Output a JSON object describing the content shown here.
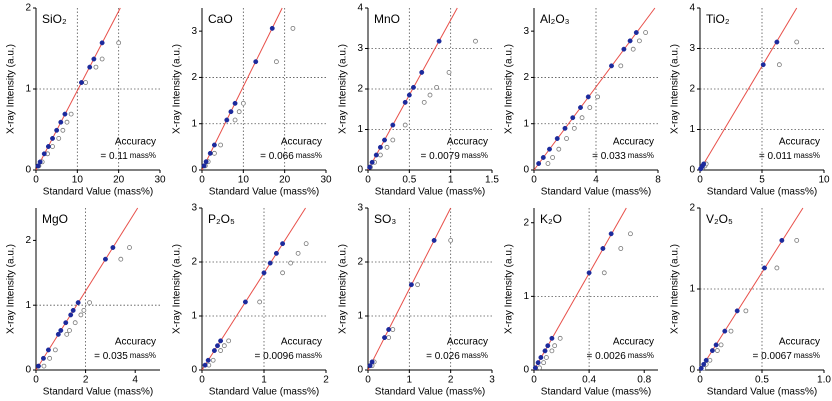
{
  "chart_data": [
    {
      "type": "scatter",
      "title": "SiO₂",
      "xlabel": "Standard Value (mass%)",
      "ylabel": "X-ray Intensity (a.u.)",
      "xlim": [
        0,
        30
      ],
      "xticks": [
        0,
        10,
        20,
        30
      ],
      "ylim": [
        0,
        2
      ],
      "yticks": [
        0,
        1,
        2
      ],
      "grid": true,
      "annotation": "Accuracy",
      "accuracy": "= 0.11",
      "unit": "mass%",
      "series": [
        {
          "mode": "line",
          "color": "#e8504a",
          "x": [
            0,
            20.4
          ],
          "values": [
            0,
            2
          ]
        },
        {
          "mode": "open",
          "color": "#777777",
          "x": [
            0.7,
            1.5,
            2.8,
            4,
            5.5,
            6.5,
            7.5,
            8.5,
            12,
            14.5,
            16,
            20
          ],
          "values": [
            0.05,
            0.1,
            0.2,
            0.29,
            0.39,
            0.49,
            0.59,
            0.69,
            1.08,
            1.27,
            1.37,
            1.57
          ]
        },
        {
          "mode": "filled",
          "color": "#1c2a9c",
          "x": [
            0.5,
            1,
            2,
            3,
            4,
            5,
            6,
            7,
            11,
            13,
            14,
            16
          ],
          "values": [
            0.05,
            0.1,
            0.2,
            0.29,
            0.39,
            0.49,
            0.59,
            0.69,
            1.08,
            1.27,
            1.37,
            1.57
          ]
        }
      ]
    },
    {
      "type": "scatter",
      "title": "CaO",
      "xlabel": "Standard Value (mass%)",
      "ylabel": "X-ray Intensity (a.u.)",
      "xlim": [
        0,
        30
      ],
      "xticks": [
        0,
        10,
        20,
        30
      ],
      "ylim": [
        0,
        3.5
      ],
      "yticks": [
        0,
        1,
        2,
        3
      ],
      "grid": true,
      "annotation": "Accuracy",
      "accuracy": "= 0.066",
      "unit": "mass%",
      "series": [
        {
          "mode": "line",
          "color": "#e8504a",
          "x": [
            0,
            19.4
          ],
          "values": [
            0,
            3.5
          ]
        },
        {
          "mode": "open",
          "color": "#777777",
          "x": [
            0.8,
            1.5,
            3,
            4.5,
            8,
            9,
            10,
            18,
            22
          ],
          "values": [
            0.09,
            0.18,
            0.36,
            0.54,
            1.08,
            1.26,
            1.44,
            2.34,
            3.06
          ]
        },
        {
          "mode": "filled",
          "color": "#1c2a9c",
          "x": [
            0.5,
            1,
            2,
            3,
            6,
            7,
            8,
            13,
            17
          ],
          "values": [
            0.09,
            0.18,
            0.36,
            0.54,
            1.08,
            1.26,
            1.44,
            2.34,
            3.06
          ]
        }
      ]
    },
    {
      "type": "scatter",
      "title": "MnO",
      "xlabel": "Standard Value (mass%)",
      "ylabel": "X-ray Intensity (a.u.)",
      "xlim": [
        0,
        1.5
      ],
      "xticks": [
        0,
        0.5,
        1,
        1.5
      ],
      "ylim": [
        0,
        4
      ],
      "yticks": [
        0,
        1,
        2,
        3,
        4
      ],
      "grid": true,
      "annotation": "Accuracy",
      "accuracy": "= 0.0079",
      "unit": "mass%",
      "series": [
        {
          "mode": "line",
          "color": "#e8504a",
          "x": [
            0,
            1.08
          ],
          "values": [
            0,
            4
          ]
        },
        {
          "mode": "open",
          "color": "#777777",
          "x": [
            0.03,
            0.08,
            0.15,
            0.23,
            0.3,
            0.45,
            0.68,
            0.75,
            0.83,
            0.98,
            1.3
          ],
          "values": [
            0.07,
            0.19,
            0.37,
            0.56,
            0.74,
            1.11,
            1.67,
            1.85,
            2.04,
            2.41,
            3.18
          ]
        },
        {
          "mode": "filled",
          "color": "#1c2a9c",
          "x": [
            0.02,
            0.05,
            0.1,
            0.15,
            0.2,
            0.3,
            0.45,
            0.5,
            0.55,
            0.65,
            0.86
          ],
          "values": [
            0.07,
            0.19,
            0.37,
            0.56,
            0.74,
            1.11,
            1.67,
            1.85,
            2.04,
            2.41,
            3.18
          ]
        }
      ]
    },
    {
      "type": "scatter",
      "title": "Al₂O₃",
      "xlabel": "Standard Value (mass%)",
      "ylabel": "X-ray Intensity (a.u.)",
      "xlim": [
        0,
        8
      ],
      "xticks": [
        0,
        4,
        8
      ],
      "ylim": [
        0,
        3.5
      ],
      "yticks": [
        0,
        1,
        2,
        3
      ],
      "grid": true,
      "annotation": "Accuracy",
      "accuracy": "= 0.033",
      "unit": "mass%",
      "series": [
        {
          "mode": "line",
          "color": "#e8504a",
          "x": [
            0,
            7.8
          ],
          "values": [
            0,
            3.5
          ]
        },
        {
          "mode": "open",
          "color": "#777777",
          "x": [
            0.9,
            1.2,
            1.6,
            2.1,
            2.6,
            3.1,
            3.6,
            4.1,
            5.6,
            6.4,
            6.8,
            7.2
          ],
          "values": [
            0.14,
            0.27,
            0.45,
            0.68,
            0.9,
            1.13,
            1.35,
            1.58,
            2.25,
            2.61,
            2.79,
            2.97
          ]
        },
        {
          "mode": "filled",
          "color": "#1c2a9c",
          "x": [
            0.3,
            0.6,
            1,
            1.5,
            2,
            2.5,
            3,
            3.5,
            5,
            5.8,
            6.2,
            6.6
          ],
          "values": [
            0.14,
            0.27,
            0.45,
            0.68,
            0.9,
            1.13,
            1.35,
            1.58,
            2.25,
            2.61,
            2.79,
            2.97
          ]
        }
      ]
    },
    {
      "type": "scatter",
      "title": "TiO₂",
      "xlabel": "Standard Value (mass%)",
      "ylabel": "X-ray Intensity (a.u.)",
      "xlim": [
        0,
        10
      ],
      "xticks": [
        0,
        5,
        10
      ],
      "ylim": [
        0,
        4
      ],
      "yticks": [
        0,
        1,
        2,
        3,
        4
      ],
      "grid": true,
      "annotation": "Accuracy",
      "accuracy": "= 0.011",
      "unit": "mass%",
      "series": [
        {
          "mode": "line",
          "color": "#e8504a",
          "x": [
            0,
            7.8
          ],
          "values": [
            0,
            4
          ]
        },
        {
          "mode": "open",
          "color": "#777777",
          "x": [
            0.1,
            0.2,
            0.4,
            0.5,
            6.4,
            7.8
          ],
          "values": [
            0.03,
            0.05,
            0.1,
            0.15,
            2.6,
            3.16
          ]
        },
        {
          "mode": "filled",
          "color": "#1c2a9c",
          "x": [
            0.05,
            0.1,
            0.2,
            0.3,
            5.1,
            6.2
          ],
          "values": [
            0.03,
            0.05,
            0.1,
            0.15,
            2.6,
            3.16
          ]
        }
      ]
    },
    {
      "type": "scatter",
      "title": "MgO",
      "xlabel": "Standard Value (mass%)",
      "ylabel": "X-ray Intensity (a.u.)",
      "xlim": [
        0,
        5
      ],
      "xticks": [
        0,
        2,
        4
      ],
      "ylim": [
        0,
        2.5
      ],
      "yticks": [
        0,
        1,
        2
      ],
      "grid": true,
      "annotation": "Accuracy",
      "accuracy": "= 0.035",
      "unit": "mass%",
      "series": [
        {
          "mode": "line",
          "color": "#e8504a",
          "x": [
            0,
            4.1
          ],
          "values": [
            0,
            2.5
          ]
        },
        {
          "mode": "open",
          "color": "#777777",
          "x": [
            0.32,
            0.55,
            0.78,
            1.24,
            1.35,
            1.58,
            1.81,
            1.93,
            2.16,
            3.42,
            3.77
          ],
          "values": [
            0.06,
            0.18,
            0.31,
            0.55,
            0.61,
            0.73,
            0.85,
            0.92,
            1.04,
            1.71,
            1.89
          ]
        },
        {
          "mode": "filled",
          "color": "#1c2a9c",
          "x": [
            0.1,
            0.3,
            0.5,
            0.9,
            1.0,
            1.2,
            1.4,
            1.5,
            1.7,
            2.8,
            3.1
          ],
          "values": [
            0.06,
            0.18,
            0.31,
            0.55,
            0.61,
            0.73,
            0.85,
            0.92,
            1.04,
            1.71,
            1.89
          ]
        }
      ]
    },
    {
      "type": "scatter",
      "title": "P₂O₅",
      "xlabel": "Standard Value (mass%)",
      "ylabel": "X-ray Intensity (a.u.)",
      "xlim": [
        0,
        2
      ],
      "xticks": [
        0,
        1,
        2
      ],
      "ylim": [
        0,
        3
      ],
      "yticks": [
        0,
        1,
        2,
        3
      ],
      "grid": true,
      "annotation": "Accuracy",
      "accuracy": "= 0.0096",
      "unit": "mass%",
      "series": [
        {
          "mode": "line",
          "color": "#e8504a",
          "x": [
            0,
            1.67
          ],
          "values": [
            0,
            3
          ]
        },
        {
          "mode": "open",
          "color": "#777777",
          "x": [
            0.11,
            0.18,
            0.3,
            0.36,
            0.43,
            0.93,
            1.3,
            1.43,
            1.55,
            1.68
          ],
          "values": [
            0.09,
            0.18,
            0.36,
            0.45,
            0.54,
            1.26,
            1.8,
            1.98,
            2.16,
            2.34
          ]
        },
        {
          "mode": "filled",
          "color": "#1c2a9c",
          "x": [
            0.05,
            0.1,
            0.2,
            0.25,
            0.3,
            0.7,
            1.0,
            1.1,
            1.2,
            1.3
          ],
          "values": [
            0.09,
            0.18,
            0.36,
            0.45,
            0.54,
            1.26,
            1.8,
            1.98,
            2.16,
            2.34
          ]
        }
      ]
    },
    {
      "type": "scatter",
      "title": "SO₃",
      "xlabel": "Standard Value (mass%)",
      "ylabel": "X-ray Intensity (a.u.)",
      "xlim": [
        0,
        3
      ],
      "xticks": [
        0,
        1,
        2,
        3
      ],
      "ylim": [
        0,
        3
      ],
      "yticks": [
        0,
        1,
        2,
        3
      ],
      "grid": true,
      "annotation": "Accuracy",
      "accuracy": "= 0.026",
      "unit": "mass%",
      "series": [
        {
          "mode": "line",
          "color": "#e8504a",
          "x": [
            0,
            2
          ],
          "values": [
            0,
            3
          ]
        },
        {
          "mode": "open",
          "color": "#777777",
          "x": [
            0.1,
            0.15,
            0.5,
            0.6,
            1.2,
            2.0
          ],
          "values": [
            0.08,
            0.15,
            0.6,
            0.75,
            1.58,
            2.4
          ]
        },
        {
          "mode": "filled",
          "color": "#1c2a9c",
          "x": [
            0.05,
            0.1,
            0.4,
            0.5,
            1.05,
            1.6
          ],
          "values": [
            0.08,
            0.15,
            0.6,
            0.75,
            1.58,
            2.4
          ]
        }
      ]
    },
    {
      "type": "scatter",
      "title": "K₂O",
      "xlabel": "Standard Value (mass%)",
      "ylabel": "X-ray Intensity (a.u.)",
      "xlim": [
        0,
        0.9
      ],
      "xticks": [
        0,
        0.4,
        0.8
      ],
      "ylim": [
        0,
        2.2
      ],
      "yticks": [
        0,
        1,
        2
      ],
      "grid": true,
      "annotation": "Accuracy",
      "accuracy": "= 0.0026",
      "unit": "mass%",
      "series": [
        {
          "mode": "line",
          "color": "#e8504a",
          "x": [
            0,
            0.67
          ],
          "values": [
            0,
            2.2
          ]
        },
        {
          "mode": "open",
          "color": "#777777",
          "x": [
            0.04,
            0.07,
            0.09,
            0.13,
            0.15,
            0.19,
            0.51,
            0.63,
            0.7
          ],
          "values": [
            0.03,
            0.1,
            0.17,
            0.26,
            0.33,
            0.43,
            1.32,
            1.65,
            1.85
          ]
        },
        {
          "mode": "filled",
          "color": "#1c2a9c",
          "x": [
            0.01,
            0.03,
            0.05,
            0.08,
            0.1,
            0.13,
            0.4,
            0.5,
            0.56
          ],
          "values": [
            0.03,
            0.1,
            0.17,
            0.26,
            0.33,
            0.43,
            1.32,
            1.65,
            1.85
          ]
        }
      ]
    },
    {
      "type": "scatter",
      "title": "V₂O₅",
      "xlabel": "Standard Value (mass%)",
      "ylabel": "X-ray Intensity (a.u.)",
      "xlim": [
        0,
        1
      ],
      "xticks": [
        0,
        0.5,
        {
          "value": 1,
          "label": "1.0"
        }
      ],
      "ylim": [
        0,
        2
      ],
      "yticks": [
        0,
        1,
        2
      ],
      "grid": true,
      "annotation": "Accuracy",
      "accuracy": "= 0.0067",
      "unit": "mass%",
      "series": [
        {
          "mode": "line",
          "color": "#e8504a",
          "x": [
            0,
            0.83
          ],
          "values": [
            0,
            2
          ]
        },
        {
          "mode": "open",
          "color": "#777777",
          "x": [
            0.03,
            0.05,
            0.08,
            0.14,
            0.17,
            0.25,
            0.37,
            0.62,
            0.78
          ],
          "values": [
            0.02,
            0.07,
            0.12,
            0.24,
            0.31,
            0.48,
            0.73,
            1.26,
            1.6
          ]
        },
        {
          "mode": "filled",
          "color": "#1c2a9c",
          "x": [
            0.01,
            0.03,
            0.05,
            0.1,
            0.13,
            0.2,
            0.3,
            0.52,
            0.66
          ],
          "values": [
            0.02,
            0.07,
            0.12,
            0.24,
            0.31,
            0.48,
            0.73,
            1.26,
            1.6
          ]
        }
      ]
    }
  ]
}
